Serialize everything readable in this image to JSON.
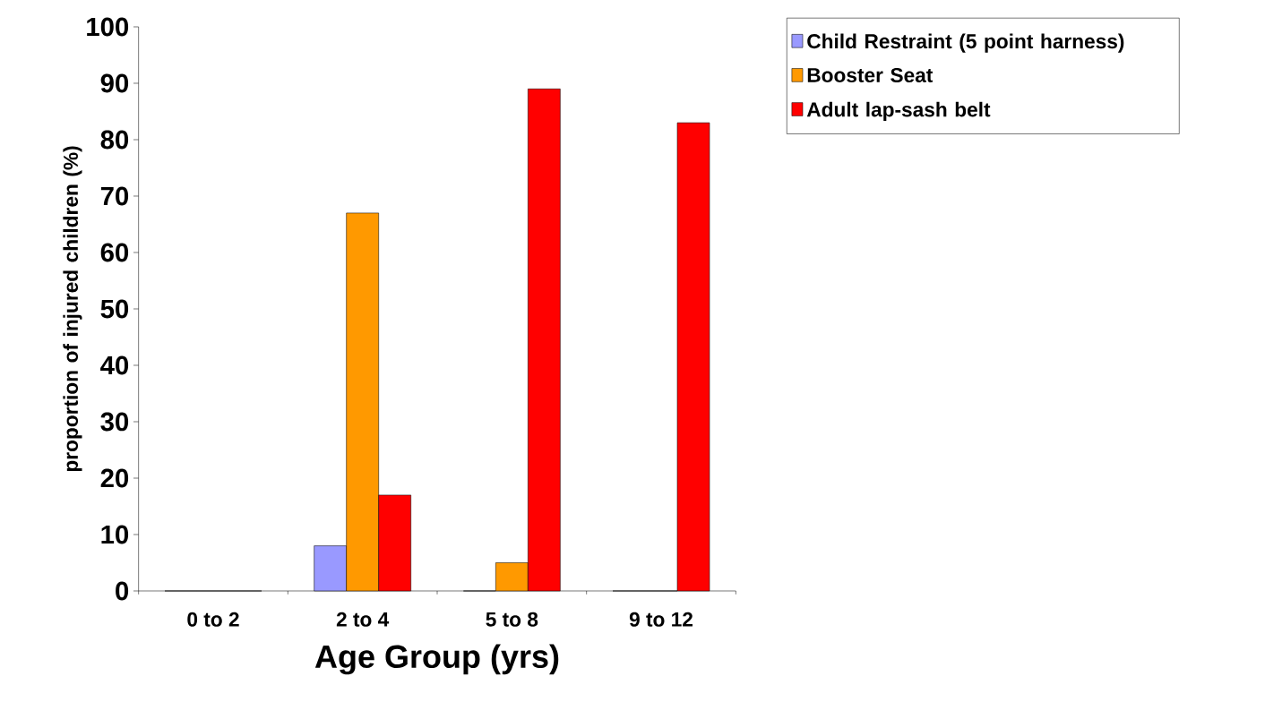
{
  "chart_data": {
    "type": "bar",
    "xlabel": "Age Group (yrs)",
    "ylabel": "proportion of injured children (%)",
    "categories": [
      "0 to 2",
      "2 to 4",
      "5 to 8",
      "9 to 12"
    ],
    "series": [
      {
        "name": "Child Restraint (5 point harness)",
        "color": "#9999ff",
        "values": [
          0,
          8,
          0,
          0
        ]
      },
      {
        "name": "Booster Seat",
        "color": "#ff9900",
        "values": [
          0,
          67,
          5,
          0
        ]
      },
      {
        "name": "Adult lap-sash belt",
        "color": "#ff0000",
        "values": [
          0,
          17,
          89,
          83
        ]
      }
    ],
    "ylim": [
      0,
      100
    ],
    "yticks": [
      0,
      10,
      20,
      30,
      40,
      50,
      60,
      70,
      80,
      90,
      100
    ],
    "grid": false,
    "legend": "top right"
  }
}
